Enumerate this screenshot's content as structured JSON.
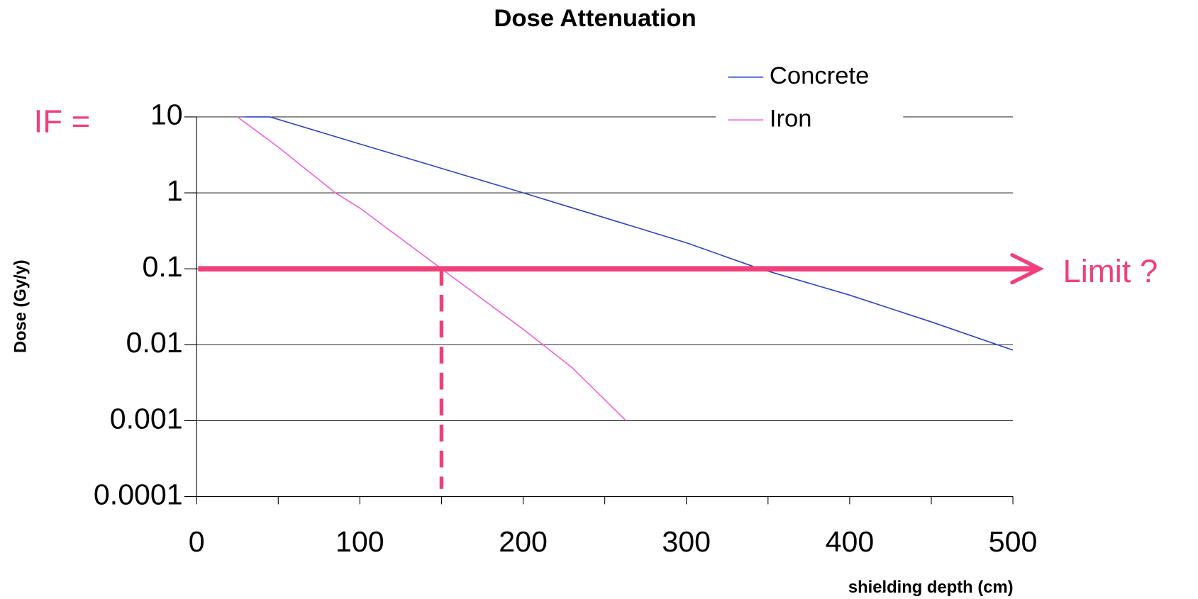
{
  "chart_data": {
    "type": "line",
    "title": "Dose  Attenuation",
    "x_label": "shielding depth (cm)",
    "y_label": "Dose (Gy/y)",
    "log_y": true,
    "grid": true,
    "legend": "upper right",
    "xlim": [
      0,
      500
    ],
    "xticks": [
      0,
      100,
      200,
      300,
      400,
      500
    ],
    "xminor_ticks": [
      50,
      150,
      250,
      350,
      450
    ],
    "ylim": [
      0.0001,
      10
    ],
    "yticks": [
      10,
      1,
      0.1,
      0.01,
      0.001,
      0.0001
    ],
    "series": [
      {
        "name": "Concrete",
        "color": "#2b45c8",
        "x": [
          30,
          45,
          100,
          150,
          200,
          250,
          300,
          345,
          400,
          450,
          500
        ],
        "values": [
          10,
          10,
          4.4,
          2.1,
          1.0,
          0.47,
          0.22,
          0.1,
          0.045,
          0.02,
          0.0085
        ]
      },
      {
        "name": "Iron",
        "color": "#f060e0",
        "x": [
          25,
          50,
          85,
          100,
          150,
          200,
          230,
          263
        ],
        "values": [
          10,
          4.0,
          1.0,
          0.63,
          0.1,
          0.016,
          0.005,
          0.001
        ]
      }
    ],
    "annotations": {
      "if_label": "IF =",
      "limit_label": "Limit ?",
      "limit_value": 0.1,
      "limit_depth": 150,
      "color": "#f0407a"
    }
  }
}
